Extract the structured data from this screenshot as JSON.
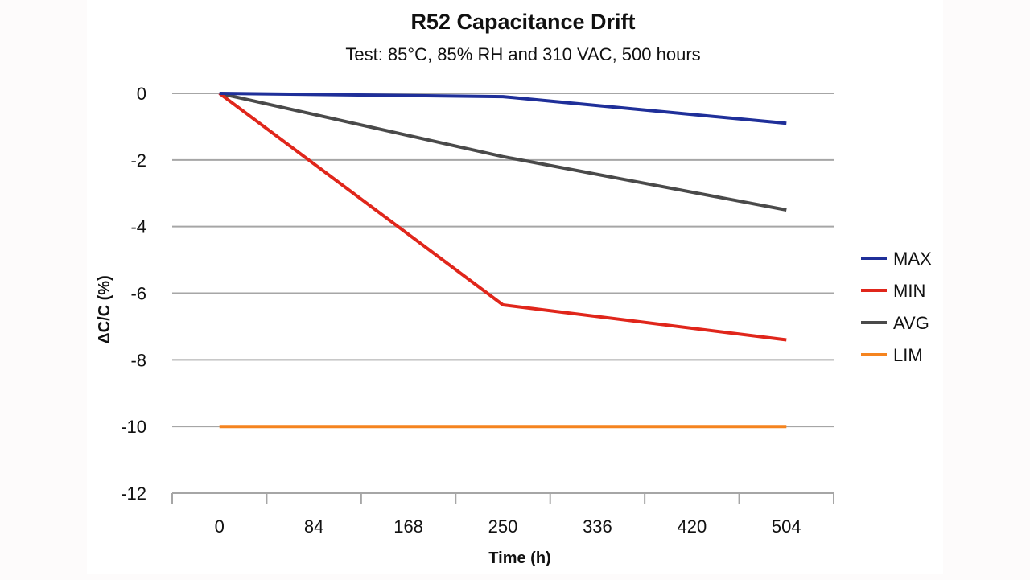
{
  "chart_data": {
    "type": "line",
    "title": "R52 Capacitance Drift",
    "subtitle": "Test: 85°C, 85% RH and 310 VAC, 500 hours",
    "xlabel": "Time (h)",
    "ylabel": "ΔC/C (%)",
    "categories": [
      "0",
      "84",
      "168",
      "250",
      "336",
      "420",
      "504"
    ],
    "ylim": [
      -12,
      0
    ],
    "yticks": [
      0,
      -2,
      -4,
      -6,
      -8,
      -10,
      -12
    ],
    "grid": true,
    "legend_position": "right",
    "series": [
      {
        "name": "MAX",
        "color": "#1f2f99",
        "x": [
          "0",
          "250",
          "504"
        ],
        "values": [
          0,
          -0.1,
          -0.9
        ]
      },
      {
        "name": "MIN",
        "color": "#e0261b",
        "x": [
          "0",
          "250",
          "504"
        ],
        "values": [
          0,
          -6.35,
          -7.4
        ]
      },
      {
        "name": "AVG",
        "color": "#4a4a4a",
        "x": [
          "0",
          "250",
          "504"
        ],
        "values": [
          0,
          -1.9,
          -3.5
        ]
      },
      {
        "name": "LIM",
        "color": "#f5841f",
        "x": [
          "0",
          "250",
          "504"
        ],
        "values": [
          -10,
          -10,
          -10
        ]
      }
    ]
  }
}
